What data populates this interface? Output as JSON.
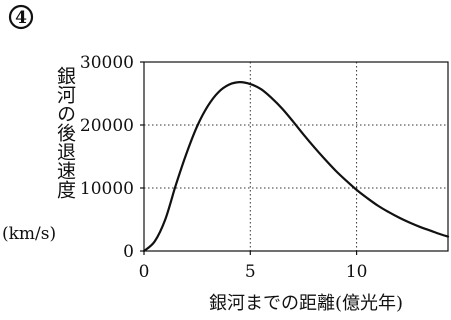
{
  "panel_label": "4",
  "chart_data": {
    "type": "line",
    "ylabel": "銀河の後退速度",
    "yunit": "(km/s)",
    "xlabel": "銀河までの距離(億光年)",
    "xlim": [
      0,
      14.3
    ],
    "ylim": [
      0,
      30000
    ],
    "xticks": [
      0,
      5,
      10
    ],
    "yticks": [
      0,
      10000,
      20000,
      30000
    ],
    "grid": "dotted",
    "series": [
      {
        "x": [
          0,
          0.5,
          1,
          1.5,
          2,
          2.5,
          3,
          3.5,
          4,
          4.5,
          5,
          5.5,
          6,
          6.5,
          7,
          7.5,
          8,
          8.5,
          9,
          9.5,
          10,
          10.5,
          11,
          11.5,
          12,
          12.5,
          13,
          13.5,
          14,
          14.3
        ],
        "y": [
          0,
          1500,
          5000,
          10500,
          15500,
          19800,
          23000,
          25200,
          26400,
          26800,
          26500,
          25700,
          24300,
          22600,
          20600,
          18500,
          16500,
          14600,
          12800,
          11200,
          9700,
          8400,
          7200,
          6200,
          5300,
          4500,
          3800,
          3200,
          2600,
          2300
        ]
      }
    ]
  }
}
